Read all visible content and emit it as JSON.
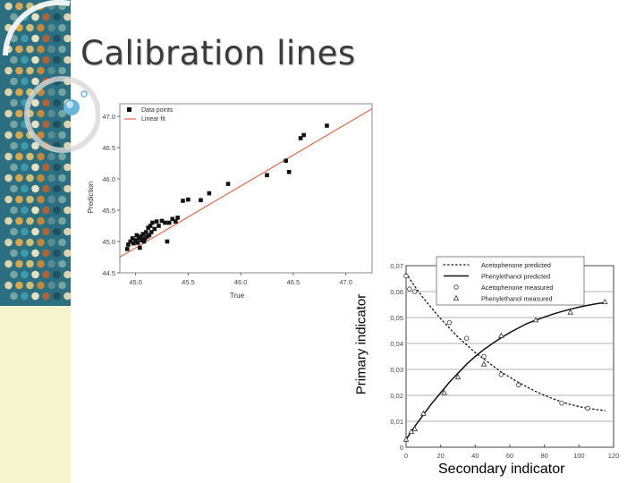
{
  "slide": {
    "title": "Calibration lines"
  },
  "labels": {
    "primary": "Primary indicator",
    "secondary": "Secondary indicator"
  },
  "colors": {
    "title": "#3a3a3a",
    "fit_line": "#d9694a",
    "cream": "#f6f3cf",
    "teal": "#2f7f8f"
  },
  "chart_data": [
    {
      "type": "scatter",
      "xlabel": "True",
      "ylabel": "Prediction",
      "xlim": [
        44.85,
        47.25
      ],
      "ylim": [
        44.5,
        47.2
      ],
      "xticks": [
        "45.0",
        "45.5",
        "46.0",
        "46.5",
        "47.0"
      ],
      "yticks": [
        "44.5",
        "45.0",
        "45.5",
        "46.0",
        "46.5",
        "47.0"
      ],
      "legend": [
        "Data points",
        "Linear fit"
      ],
      "legend_position": "top-left",
      "grid": false,
      "series": [
        {
          "name": "Data points",
          "type": "scatter",
          "points": [
            [
              44.92,
              44.88
            ],
            [
              44.93,
              44.95
            ],
            [
              44.95,
              45.0
            ],
            [
              44.97,
              45.05
            ],
            [
              44.98,
              44.97
            ],
            [
              45.0,
              45.02
            ],
            [
              45.01,
              45.1
            ],
            [
              45.02,
              44.98
            ],
            [
              45.03,
              45.05
            ],
            [
              45.04,
              44.9
            ],
            [
              45.05,
              45.08
            ],
            [
              45.06,
              45.02
            ],
            [
              45.07,
              45.12
            ],
            [
              45.08,
              45.0
            ],
            [
              45.09,
              45.05
            ],
            [
              45.1,
              45.15
            ],
            [
              45.11,
              45.08
            ],
            [
              45.12,
              45.22
            ],
            [
              45.13,
              45.1
            ],
            [
              45.14,
              45.25
            ],
            [
              45.15,
              45.15
            ],
            [
              45.16,
              45.3
            ],
            [
              45.18,
              45.2
            ],
            [
              45.2,
              45.32
            ],
            [
              45.22,
              45.25
            ],
            [
              45.25,
              45.33
            ],
            [
              45.28,
              45.3
            ],
            [
              45.3,
              45.0
            ],
            [
              45.32,
              45.3
            ],
            [
              45.35,
              45.36
            ],
            [
              45.38,
              45.32
            ],
            [
              45.4,
              45.38
            ],
            [
              45.45,
              45.65
            ],
            [
              45.5,
              45.67
            ],
            [
              45.62,
              45.66
            ],
            [
              45.7,
              45.77
            ],
            [
              45.88,
              45.92
            ],
            [
              46.25,
              46.06
            ],
            [
              46.43,
              46.29
            ],
            [
              46.46,
              46.11
            ],
            [
              46.57,
              46.65
            ],
            [
              46.6,
              46.7
            ],
            [
              46.82,
              46.85
            ]
          ]
        },
        {
          "name": "Linear fit",
          "type": "line",
          "points": [
            [
              44.85,
              44.75
            ],
            [
              47.25,
              47.12
            ]
          ]
        }
      ]
    },
    {
      "type": "line",
      "xlim": [
        0,
        120
      ],
      "ylim": [
        0,
        0.07
      ],
      "xticks": [
        "0",
        "20",
        "40",
        "60",
        "80",
        "100",
        "120"
      ],
      "yticks": [
        "0",
        "0,01",
        "0,02",
        "0,03",
        "0,04",
        "0,05",
        "0,06",
        "0,07"
      ],
      "legend": [
        "Acetophenone predicted",
        "Phenylethanol predicted",
        "Acetophenone measured",
        "Phenylethanol measured"
      ],
      "legend_position": "top-right",
      "grid": true,
      "series": [
        {
          "name": "Acetophenone predicted",
          "type": "line",
          "style": "dotted",
          "points": [
            [
              0,
              0.067
            ],
            [
              5,
              0.062
            ],
            [
              10,
              0.0575
            ],
            [
              15,
              0.0535
            ],
            [
              20,
              0.0495
            ],
            [
              25,
              0.046
            ],
            [
              30,
              0.0425
            ],
            [
              35,
              0.0395
            ],
            [
              40,
              0.0365
            ],
            [
              45,
              0.034
            ],
            [
              50,
              0.0315
            ],
            [
              55,
              0.029
            ],
            [
              60,
              0.027
            ],
            [
              65,
              0.025
            ],
            [
              70,
              0.0232
            ],
            [
              75,
              0.0215
            ],
            [
              80,
              0.02
            ],
            [
              85,
              0.0187
            ],
            [
              90,
              0.0175
            ],
            [
              95,
              0.0165
            ],
            [
              100,
              0.0157
            ],
            [
              105,
              0.015
            ],
            [
              110,
              0.0145
            ],
            [
              115,
              0.0141
            ]
          ]
        },
        {
          "name": "Phenylethanol predicted",
          "type": "line",
          "style": "solid",
          "points": [
            [
              0,
              0.003
            ],
            [
              5,
              0.008
            ],
            [
              10,
              0.0125
            ],
            [
              15,
              0.017
            ],
            [
              20,
              0.021
            ],
            [
              25,
              0.025
            ],
            [
              30,
              0.0285
            ],
            [
              35,
              0.032
            ],
            [
              40,
              0.035
            ],
            [
              45,
              0.0377
            ],
            [
              50,
              0.04
            ],
            [
              55,
              0.0422
            ],
            [
              60,
              0.0442
            ],
            [
              65,
              0.046
            ],
            [
              70,
              0.0477
            ],
            [
              75,
              0.049
            ],
            [
              80,
              0.0502
            ],
            [
              85,
              0.0513
            ],
            [
              90,
              0.0523
            ],
            [
              95,
              0.0532
            ],
            [
              100,
              0.054
            ],
            [
              105,
              0.0547
            ],
            [
              110,
              0.0553
            ],
            [
              115,
              0.0558
            ]
          ]
        },
        {
          "name": "Acetophenone measured",
          "type": "scatter",
          "marker": "circle",
          "points": [
            [
              0,
              0.066
            ],
            [
              2,
              0.061
            ],
            [
              5,
              0.06
            ],
            [
              25,
              0.048
            ],
            [
              35,
              0.042
            ],
            [
              45,
              0.035
            ],
            [
              55,
              0.028
            ],
            [
              65,
              0.024
            ],
            [
              90,
              0.017
            ],
            [
              105,
              0.015
            ]
          ]
        },
        {
          "name": "Phenylethanol measured",
          "type": "scatter",
          "marker": "triangle",
          "points": [
            [
              0,
              0.003
            ],
            [
              3,
              0.006
            ],
            [
              5,
              0.007
            ],
            [
              10,
              0.013
            ],
            [
              22,
              0.021
            ],
            [
              30,
              0.027
            ],
            [
              45,
              0.032
            ],
            [
              55,
              0.043
            ],
            [
              75,
              0.049
            ],
            [
              95,
              0.052
            ],
            [
              115,
              0.056
            ]
          ]
        }
      ]
    }
  ]
}
